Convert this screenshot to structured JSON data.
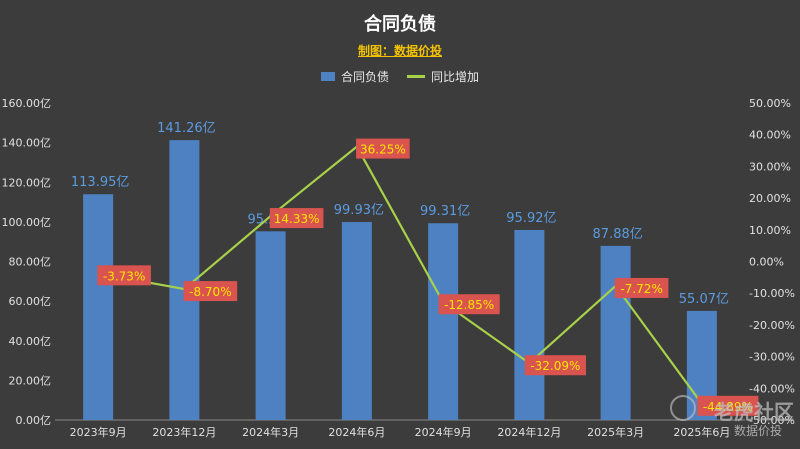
{
  "chart_data": {
    "type": "bar",
    "title": "合同负债",
    "subtitle": "制图：数据价投",
    "categories": [
      "2023年9月",
      "2023年12月",
      "2024年3月",
      "2024年6月",
      "2024年9月",
      "2024年12月",
      "2025年3月",
      "2025年6月"
    ],
    "series": [
      {
        "name": "合同负债",
        "type": "bar",
        "axis": "left",
        "color": "#4e81c1",
        "values": [
          113.95,
          141.26,
          95.23,
          99.93,
          99.31,
          95.92,
          87.88,
          55.07
        ],
        "labels": [
          "113.95亿",
          "141.26亿",
          "95.23亿",
          "99.93亿",
          "99.31亿",
          "95.92亿",
          "87.88亿",
          "55.07亿"
        ]
      },
      {
        "name": "同比增加",
        "type": "line",
        "axis": "right",
        "color": "#a8d14a",
        "values": [
          -3.73,
          -8.7,
          14.33,
          36.25,
          -12.85,
          -32.09,
          -7.72,
          -44.89
        ],
        "labels": [
          "-3.73%",
          "-8.70%",
          "14.33%",
          "36.25%",
          "-12.85%",
          "-32.09%",
          "-7.72%",
          "-44.89%"
        ]
      }
    ],
    "y_left": {
      "ylim": [
        0,
        160
      ],
      "ticks": [
        0,
        20,
        40,
        60,
        80,
        100,
        120,
        140,
        160
      ],
      "tick_labels": [
        "0.00亿",
        "20.00亿",
        "40.00亿",
        "60.00亿",
        "80.00亿",
        "100.00亿",
        "120.00亿",
        "140.00亿",
        "160.00亿"
      ]
    },
    "y_right": {
      "ylim": [
        -50,
        50
      ],
      "ticks": [
        -50,
        -40,
        -30,
        -20,
        -10,
        0,
        10,
        20,
        30,
        40,
        50
      ],
      "tick_labels": [
        "-50.00%",
        "-40.00%",
        "-30.00%",
        "-20.00%",
        "-10.00%",
        "0.00%",
        "10.00%",
        "20.00%",
        "30.00%",
        "40.00%",
        "50.00%"
      ]
    },
    "legend": "top-center",
    "grid": false
  },
  "watermark": {
    "main": "老虎社区",
    "sub": "数据价投"
  }
}
